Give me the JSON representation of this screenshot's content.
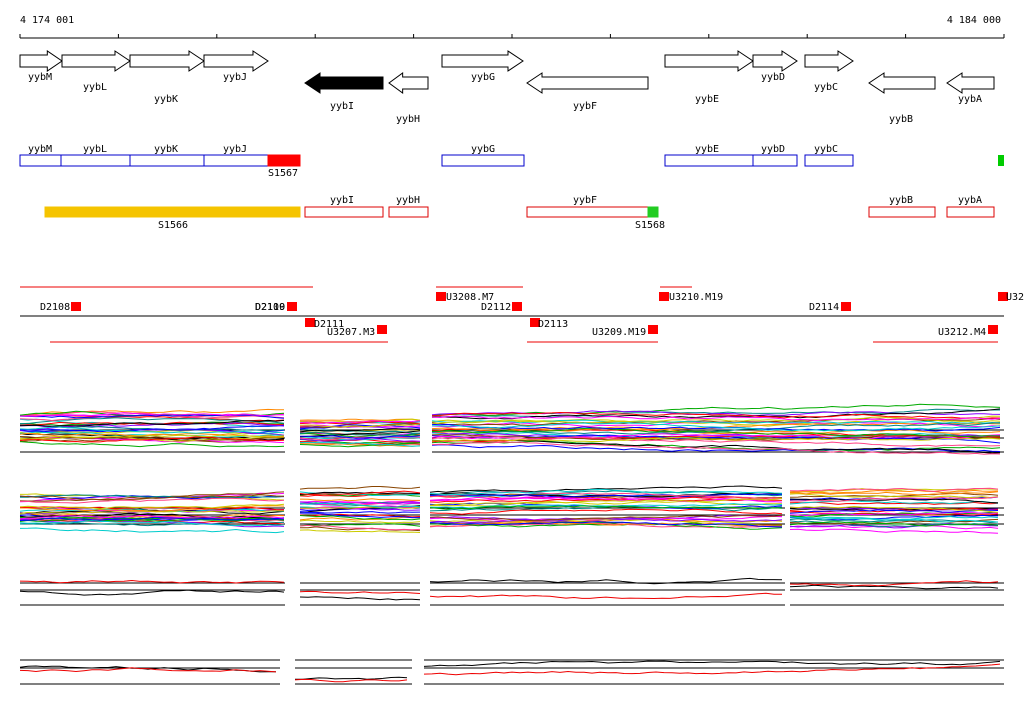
{
  "ruler": {
    "start": "4 174 001",
    "end": "4 184 000"
  },
  "genes": [
    {
      "label": "yybM"
    },
    {
      "label": "yybL"
    },
    {
      "label": "yybK"
    },
    {
      "label": "yybJ"
    },
    {
      "label": "yybI"
    },
    {
      "label": "yybH"
    },
    {
      "label": "yybG"
    },
    {
      "label": "yybF"
    },
    {
      "label": "yybE"
    },
    {
      "label": "yybD"
    },
    {
      "label": "yybC"
    },
    {
      "label": "yybB"
    },
    {
      "label": "yybA"
    }
  ],
  "annotations_upper": [
    {
      "label": "yybM"
    },
    {
      "label": "yybL"
    },
    {
      "label": "yybK"
    },
    {
      "label": "yybJ"
    },
    {
      "label": "S1567"
    },
    {
      "label": "yybG"
    },
    {
      "label": "yybE"
    },
    {
      "label": "yybD"
    },
    {
      "label": "yybC"
    }
  ],
  "annotations_lower": [
    {
      "label": "S1566"
    },
    {
      "label": "yybI"
    },
    {
      "label": "yybH"
    },
    {
      "label": "yybF"
    },
    {
      "label": "S1568"
    },
    {
      "label": "yybB"
    },
    {
      "label": "yybA"
    }
  ],
  "transcripts": [
    {
      "label": "D2108"
    },
    {
      "label": "D2110"
    },
    {
      "label": "D2109"
    },
    {
      "label": "U3208.M7"
    },
    {
      "label": "D2112"
    },
    {
      "label": "U3210.M19"
    },
    {
      "label": "D2114"
    },
    {
      "label": "U32"
    },
    {
      "label": "D2111"
    },
    {
      "label": "U3207.M3"
    },
    {
      "label": "D2113"
    },
    {
      "label": "U3209.M19"
    },
    {
      "label": "U3212.M4"
    }
  ]
}
